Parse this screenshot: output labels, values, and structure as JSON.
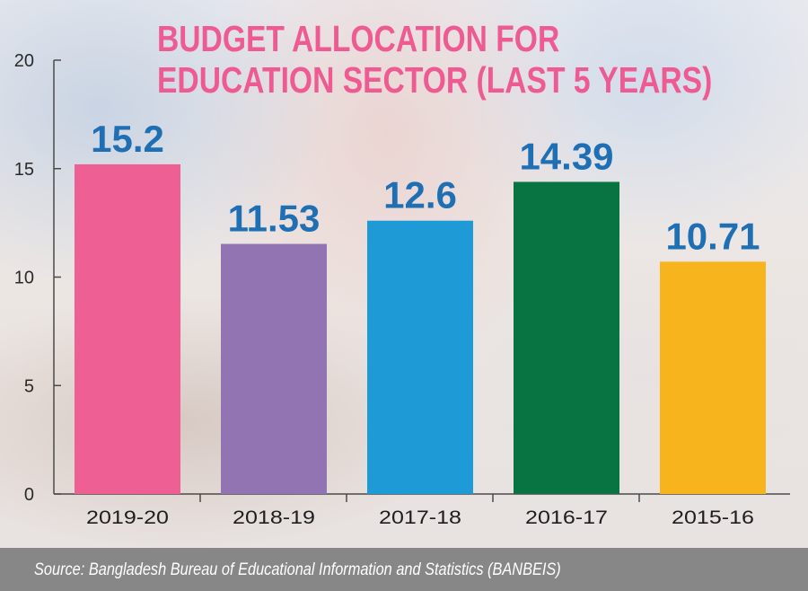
{
  "title_lines": [
    "BUDGET ALLOCATION FOR",
    "EDUCATION SECTOR (LAST 5 YEARS)"
  ],
  "source": "Source: Bangladesh Bureau of Educational Information and Statistics (BANBEIS)",
  "chart_data": {
    "type": "bar",
    "title": "BUDGET ALLOCATION FOR EDUCATION SECTOR (LAST 5 YEARS)",
    "categories": [
      "2019-20",
      "2018-19",
      "2017-18",
      "2016-17",
      "2015-16"
    ],
    "values": [
      15.2,
      11.53,
      12.6,
      14.39,
      10.71
    ],
    "value_labels": [
      "15.2",
      "11.53",
      "12.6",
      "14.39",
      "10.71"
    ],
    "bar_colors": [
      "#ee5f93",
      "#9274b2",
      "#1e9ad6",
      "#077442",
      "#f8b41c"
    ],
    "value_label_color": "#1f6fb5",
    "ylim": [
      0,
      20
    ],
    "yticks": [
      0,
      5,
      10,
      15,
      20
    ],
    "xlabel": "",
    "ylabel": "",
    "grid": false,
    "legend": "none"
  }
}
